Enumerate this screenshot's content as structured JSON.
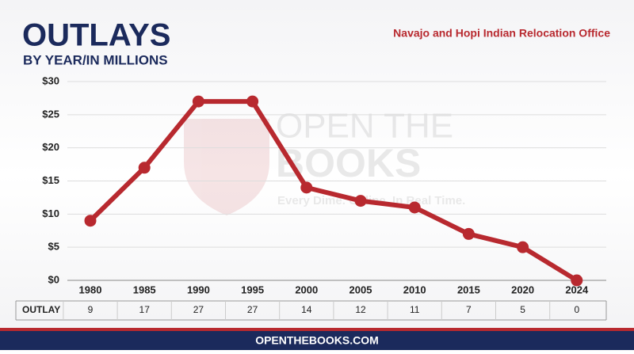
{
  "chart_data": {
    "type": "line",
    "title": "OUTLAYS",
    "subtitle": "BY YEAR/IN MILLIONS",
    "agency": "Navajo and Hopi Indian Relocation Office",
    "watermark": {
      "line1": "OPEN THE",
      "line2": "BOOKS",
      "tagline": "Every Dime. Online. In Real Time."
    },
    "categories": [
      "1980",
      "1985",
      "1990",
      "1995",
      "2000",
      "2005",
      "2010",
      "2015",
      "2020",
      "2024"
    ],
    "series": [
      {
        "name": "OUTLAY",
        "color": "#b8292f",
        "values": [
          9,
          17,
          27,
          27,
          14,
          12,
          11,
          7,
          5,
          0
        ]
      }
    ],
    "ylim": [
      0,
      30
    ],
    "yticks": [
      {
        "value": 0,
        "label": "$0"
      },
      {
        "value": 5,
        "label": "$5"
      },
      {
        "value": 10,
        "label": "$10"
      },
      {
        "value": 15,
        "label": "$15"
      },
      {
        "value": 20,
        "label": "$20"
      },
      {
        "value": 25,
        "label": "$25"
      },
      {
        "value": 30,
        "label": "$30"
      }
    ],
    "grid": true,
    "footer": "OPENTHEBOOKS.COM"
  }
}
